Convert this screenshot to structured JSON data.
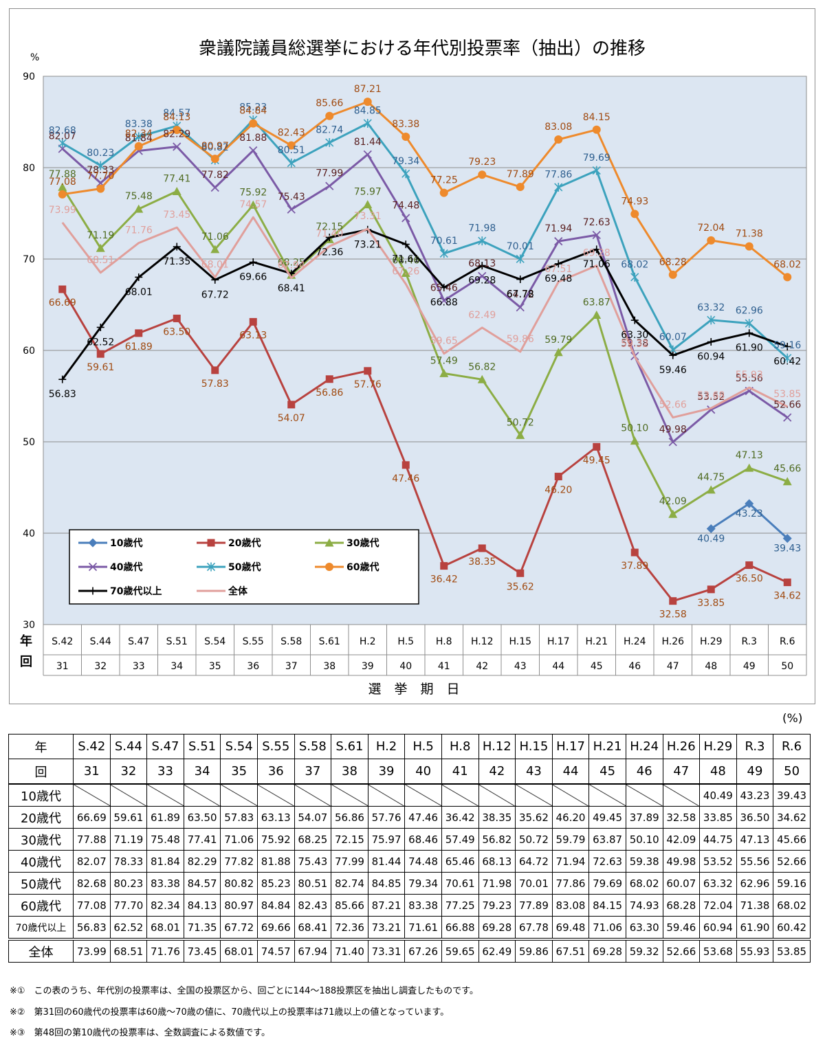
{
  "title": "衆議院議員総選挙における年代別投票率（抽出）の推移",
  "unit_axis": "%",
  "unit_table": "(%)",
  "x_axis_label": "選　挙　期　日",
  "row_label_year": "年",
  "row_label_session": "回",
  "chart_data": {
    "type": "line",
    "title": "衆議院議員総選挙における年代別投票率（抽出）の推移",
    "xlabel": "選　挙　期　日",
    "ylabel": "%",
    "ylim": [
      30,
      90
    ],
    "yticks": [
      30,
      40,
      50,
      60,
      70,
      80,
      90
    ],
    "grid": true,
    "legend_position": "bottom-left",
    "categories": [
      "S.42",
      "S.44",
      "S.47",
      "S.51",
      "S.54",
      "S.55",
      "S.58",
      "S.61",
      "H.2",
      "H.5",
      "H.8",
      "H.12",
      "H.15",
      "H.17",
      "H.21",
      "H.24",
      "H.26",
      "H.29",
      "R.3",
      "R.6"
    ],
    "sessions": [
      "31",
      "32",
      "33",
      "34",
      "35",
      "36",
      "37",
      "38",
      "39",
      "40",
      "41",
      "42",
      "43",
      "44",
      "45",
      "46",
      "47",
      "48",
      "49",
      "50"
    ],
    "series": [
      {
        "name": "10歳代",
        "color": "#4a7ebb",
        "label_color": "#2e5f8f",
        "marker": "diamond",
        "values": [
          null,
          null,
          null,
          null,
          null,
          null,
          null,
          null,
          null,
          null,
          null,
          null,
          null,
          null,
          null,
          null,
          null,
          40.49,
          43.23,
          39.43
        ]
      },
      {
        "name": "20歳代",
        "color": "#b8423f",
        "label_color": "#a04a10",
        "marker": "square",
        "values": [
          66.69,
          59.61,
          61.89,
          63.5,
          57.83,
          63.13,
          54.07,
          56.86,
          57.76,
          47.46,
          36.42,
          38.35,
          35.62,
          46.2,
          49.45,
          37.89,
          32.58,
          33.85,
          36.5,
          34.62
        ]
      },
      {
        "name": "30歳代",
        "color": "#8cad45",
        "label_color": "#4f6b21",
        "marker": "triangle",
        "values": [
          77.88,
          71.19,
          75.48,
          77.41,
          71.06,
          75.92,
          68.25,
          72.15,
          75.97,
          68.46,
          57.49,
          56.82,
          50.72,
          59.79,
          63.87,
          50.1,
          42.09,
          44.75,
          47.13,
          45.66
        ]
      },
      {
        "name": "40歳代",
        "color": "#7b5aa6",
        "label_color": "#5a1f1f",
        "marker": "x",
        "values": [
          82.07,
          78.33,
          81.84,
          82.29,
          77.82,
          81.88,
          75.43,
          77.99,
          81.44,
          74.48,
          65.46,
          68.13,
          64.72,
          71.94,
          72.63,
          59.38,
          49.98,
          53.52,
          55.56,
          52.66
        ]
      },
      {
        "name": "50歳代",
        "color": "#3ca2bd",
        "label_color": "#2e5f8f",
        "marker": "star",
        "values": [
          82.68,
          80.23,
          83.38,
          84.57,
          80.82,
          85.23,
          80.51,
          82.74,
          84.85,
          79.34,
          70.61,
          71.98,
          70.01,
          77.86,
          79.69,
          68.02,
          60.07,
          63.32,
          62.96,
          59.16
        ]
      },
      {
        "name": "60歳代",
        "color": "#ee8a2c",
        "label_color": "#a04a10",
        "marker": "circle",
        "values": [
          77.08,
          77.7,
          82.34,
          84.13,
          80.97,
          84.84,
          82.43,
          85.66,
          87.21,
          83.38,
          77.25,
          79.23,
          77.89,
          83.08,
          84.15,
          74.93,
          68.28,
          72.04,
          71.38,
          68.02
        ]
      },
      {
        "name": "70歳代以上",
        "color": "#000000",
        "label_color": "#000000",
        "marker": "plus",
        "values": [
          56.83,
          62.52,
          68.01,
          71.35,
          67.72,
          69.66,
          68.41,
          72.36,
          73.21,
          71.61,
          66.88,
          69.28,
          67.78,
          69.48,
          71.06,
          63.3,
          59.46,
          60.94,
          61.9,
          60.42
        ]
      },
      {
        "name": "全体",
        "color": "#e09f9b",
        "label_color": "#e09f9b",
        "marker": "none",
        "values": [
          73.99,
          68.51,
          71.76,
          73.45,
          68.01,
          74.57,
          67.94,
          71.4,
          73.31,
          67.26,
          59.65,
          62.49,
          59.86,
          67.51,
          69.28,
          59.32,
          52.66,
          53.68,
          55.93,
          53.85
        ]
      }
    ]
  },
  "table": {
    "years": [
      "S.42",
      "S.44",
      "S.47",
      "S.51",
      "S.54",
      "S.55",
      "S.58",
      "S.61",
      "H.2",
      "H.5",
      "H.8",
      "H.12",
      "H.15",
      "H.17",
      "H.21",
      "H.24",
      "H.26",
      "H.29",
      "R.3",
      "R.6"
    ],
    "sessions": [
      "31",
      "32",
      "33",
      "34",
      "35",
      "36",
      "37",
      "38",
      "39",
      "40",
      "41",
      "42",
      "43",
      "44",
      "45",
      "46",
      "47",
      "48",
      "49",
      "50"
    ],
    "rows": [
      {
        "label": "10歳代",
        "values": [
          "",
          "",
          "",
          "",
          "",
          "",
          "",
          "",
          "",
          "",
          "",
          "",
          "",
          "",
          "",
          "",
          "",
          "40.49",
          "43.23",
          "39.43"
        ]
      },
      {
        "label": "20歳代",
        "values": [
          "66.69",
          "59.61",
          "61.89",
          "63.50",
          "57.83",
          "63.13",
          "54.07",
          "56.86",
          "57.76",
          "47.46",
          "36.42",
          "38.35",
          "35.62",
          "46.20",
          "49.45",
          "37.89",
          "32.58",
          "33.85",
          "36.50",
          "34.62"
        ]
      },
      {
        "label": "30歳代",
        "values": [
          "77.88",
          "71.19",
          "75.48",
          "77.41",
          "71.06",
          "75.92",
          "68.25",
          "72.15",
          "75.97",
          "68.46",
          "57.49",
          "56.82",
          "50.72",
          "59.79",
          "63.87",
          "50.10",
          "42.09",
          "44.75",
          "47.13",
          "45.66"
        ]
      },
      {
        "label": "40歳代",
        "values": [
          "82.07",
          "78.33",
          "81.84",
          "82.29",
          "77.82",
          "81.88",
          "75.43",
          "77.99",
          "81.44",
          "74.48",
          "65.46",
          "68.13",
          "64.72",
          "71.94",
          "72.63",
          "59.38",
          "49.98",
          "53.52",
          "55.56",
          "52.66"
        ]
      },
      {
        "label": "50歳代",
        "values": [
          "82.68",
          "80.23",
          "83.38",
          "84.57",
          "80.82",
          "85.23",
          "80.51",
          "82.74",
          "84.85",
          "79.34",
          "70.61",
          "71.98",
          "70.01",
          "77.86",
          "79.69",
          "68.02",
          "60.07",
          "63.32",
          "62.96",
          "59.16"
        ]
      },
      {
        "label": "60歳代",
        "values": [
          "77.08",
          "77.70",
          "82.34",
          "84.13",
          "80.97",
          "84.84",
          "82.43",
          "85.66",
          "87.21",
          "83.38",
          "77.25",
          "79.23",
          "77.89",
          "83.08",
          "84.15",
          "74.93",
          "68.28",
          "72.04",
          "71.38",
          "68.02"
        ]
      },
      {
        "label": "70歳代以上",
        "values": [
          "56.83",
          "62.52",
          "68.01",
          "71.35",
          "67.72",
          "69.66",
          "68.41",
          "72.36",
          "73.21",
          "71.61",
          "66.88",
          "69.28",
          "67.78",
          "69.48",
          "71.06",
          "63.30",
          "59.46",
          "60.94",
          "61.90",
          "60.42"
        ]
      },
      {
        "label": "全体",
        "values": [
          "73.99",
          "68.51",
          "71.76",
          "73.45",
          "68.01",
          "74.57",
          "67.94",
          "71.40",
          "73.31",
          "67.26",
          "59.65",
          "62.49",
          "59.86",
          "67.51",
          "69.28",
          "59.32",
          "52.66",
          "53.68",
          "55.93",
          "53.85"
        ]
      }
    ]
  },
  "footnotes": [
    "※①　この表のうち、年代別の投票率は、全国の投票区から、回ごとに144～188投票区を抽出し調査したものです。",
    "※②　第31回の60歳代の投票率は60歳～70歳の値に、70歳代以上の投票率は71歳以上の値となっています。",
    "※③　第48回の第10歳代の投票率は、全数調査による数値です。"
  ]
}
